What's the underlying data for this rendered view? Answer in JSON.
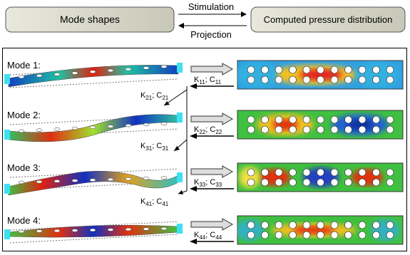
{
  "header": {
    "left_box": "Mode shapes",
    "arrow_top": "Stimulation",
    "arrow_bottom": "Projection",
    "right_box": "Computed pressure distribution"
  },
  "modes": [
    {
      "label": "Mode 1:"
    },
    {
      "label": "Mode 2:"
    },
    {
      "label": "Mode 3:"
    },
    {
      "label": "Mode 4:"
    }
  ],
  "symbols": {
    "k": "K",
    "c": "C",
    "separator": "; "
  },
  "couplings": [
    {
      "k_sub": "11",
      "c_sub": "11"
    },
    {
      "k_sub": "21",
      "c_sub": "21"
    },
    {
      "k_sub": "22",
      "c_sub": "22"
    },
    {
      "k_sub": "31",
      "c_sub": "31"
    },
    {
      "k_sub": "33",
      "c_sub": "33"
    },
    {
      "k_sub": "41",
      "c_sub": "41"
    },
    {
      "k_sub": "44",
      "c_sub": "44"
    }
  ]
}
